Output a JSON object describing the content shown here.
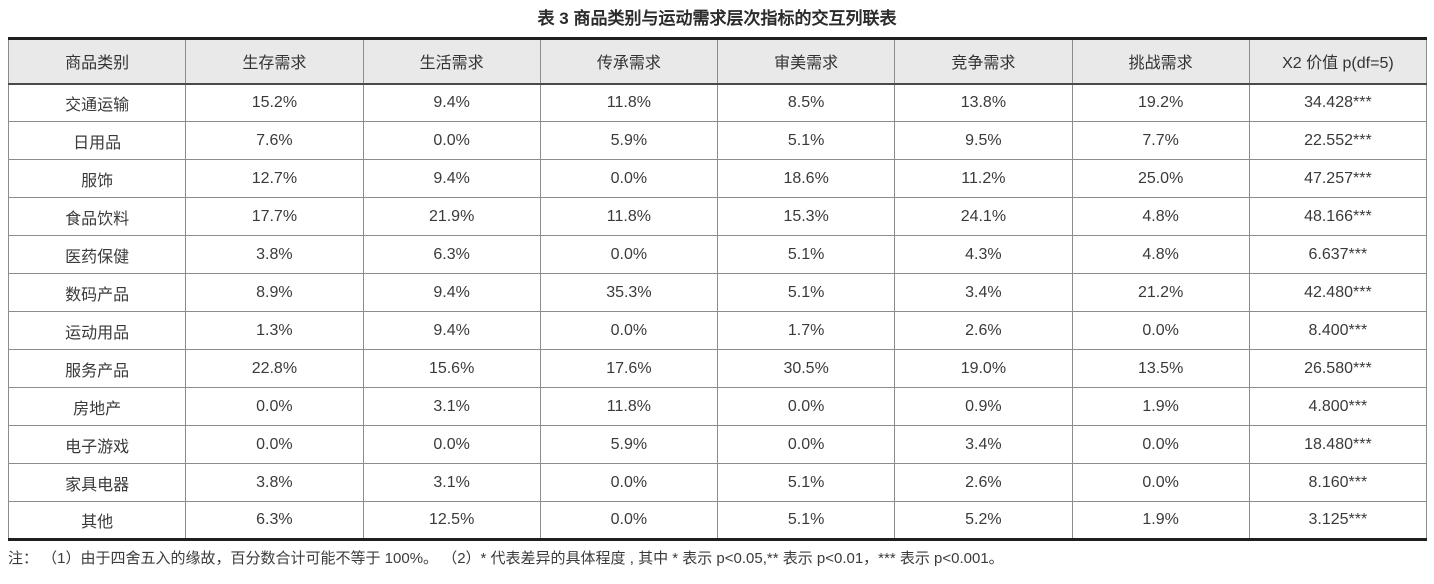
{
  "title": "表 3 商品类别与运动需求层次指标的交互列联表",
  "table": {
    "columns": [
      "商品类别",
      "生存需求",
      "生活需求",
      "传承需求",
      "审美需求",
      "竞争需求",
      "挑战需求",
      "X2 价值 p(df=5)"
    ],
    "rows": [
      {
        "category": "交通运输",
        "values": [
          "15.2%",
          "9.4%",
          "11.8%",
          "8.5%",
          "13.8%",
          "19.2%",
          "34.428***"
        ]
      },
      {
        "category": "日用品",
        "values": [
          "7.6%",
          "0.0%",
          "5.9%",
          "5.1%",
          "9.5%",
          "7.7%",
          "22.552***"
        ]
      },
      {
        "category": "服饰",
        "values": [
          "12.7%",
          "9.4%",
          "0.0%",
          "18.6%",
          "11.2%",
          "25.0%",
          "47.257***"
        ]
      },
      {
        "category": "食品饮料",
        "values": [
          "17.7%",
          "21.9%",
          "11.8%",
          "15.3%",
          "24.1%",
          "4.8%",
          "48.166***"
        ]
      },
      {
        "category": "医药保健",
        "values": [
          "3.8%",
          "6.3%",
          "0.0%",
          "5.1%",
          "4.3%",
          "4.8%",
          "6.637***"
        ]
      },
      {
        "category": "数码产品",
        "values": [
          "8.9%",
          "9.4%",
          "35.3%",
          "5.1%",
          "3.4%",
          "21.2%",
          "42.480***"
        ]
      },
      {
        "category": "运动用品",
        "values": [
          "1.3%",
          "9.4%",
          "0.0%",
          "1.7%",
          "2.6%",
          "0.0%",
          "8.400***"
        ]
      },
      {
        "category": "服务产品",
        "values": [
          "22.8%",
          "15.6%",
          "17.6%",
          "30.5%",
          "19.0%",
          "13.5%",
          "26.580***"
        ]
      },
      {
        "category": "房地产",
        "values": [
          "0.0%",
          "3.1%",
          "11.8%",
          "0.0%",
          "0.9%",
          "1.9%",
          "4.800***"
        ]
      },
      {
        "category": "电子游戏",
        "values": [
          "0.0%",
          "0.0%",
          "5.9%",
          "0.0%",
          "3.4%",
          "0.0%",
          "18.480***"
        ]
      },
      {
        "category": "家具电器",
        "values": [
          "3.8%",
          "3.1%",
          "0.0%",
          "5.1%",
          "2.6%",
          "0.0%",
          "8.160***"
        ]
      },
      {
        "category": "其他",
        "values": [
          "6.3%",
          "12.5%",
          "0.0%",
          "5.1%",
          "5.2%",
          "1.9%",
          "3.125***"
        ]
      }
    ]
  },
  "footnote": "注： （1）由于四舍五入的缘故，百分数合计可能不等于 100%。 （2）* 代表差异的具体程度 , 其中 * 表示 p<0.05,** 表示 p<0.01，*** 表示 p<0.001。",
  "colors": {
    "header_background": "#e9e9e9",
    "strong_border": "#1f1f1f",
    "light_border": "#8c8c8c",
    "text": "#3a3a3a"
  }
}
